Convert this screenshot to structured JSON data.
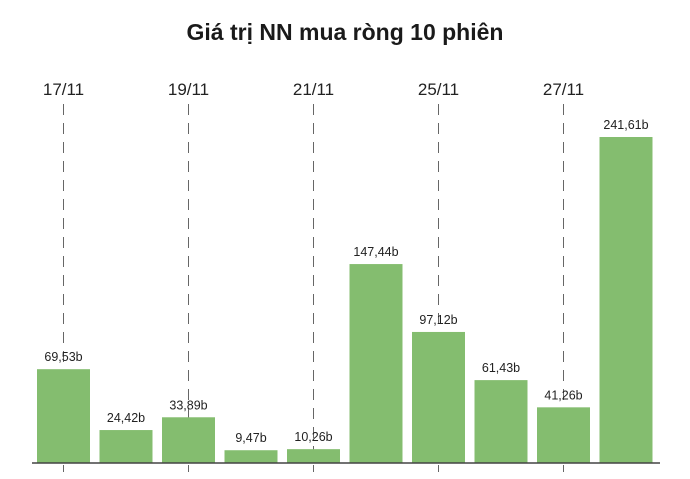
{
  "chart_data": {
    "type": "bar",
    "title": "Giá trị NN mua ròng 10 phiên",
    "xlabel": "",
    "ylabel": "",
    "unit": "b",
    "color": "#84bd6f",
    "grid": "vertical-dashed",
    "tick_labels": [
      {
        "index": 0,
        "label": "17/11"
      },
      {
        "index": 2,
        "label": "19/11"
      },
      {
        "index": 4,
        "label": "21/11"
      },
      {
        "index": 6,
        "label": "25/11"
      },
      {
        "index": 8,
        "label": "27/11"
      }
    ],
    "values": [
      69.53,
      24.42,
      33.89,
      9.47,
      10.26,
      147.44,
      97.12,
      61.43,
      41.26,
      241.61
    ],
    "data_labels": [
      "69,53b",
      "24,42b",
      "33,89b",
      "9,47b",
      "10,26b",
      "147,44b",
      "97,12b",
      "61,43b",
      "41,26b",
      "241,61b"
    ],
    "ylim": [
      0,
      250
    ]
  }
}
